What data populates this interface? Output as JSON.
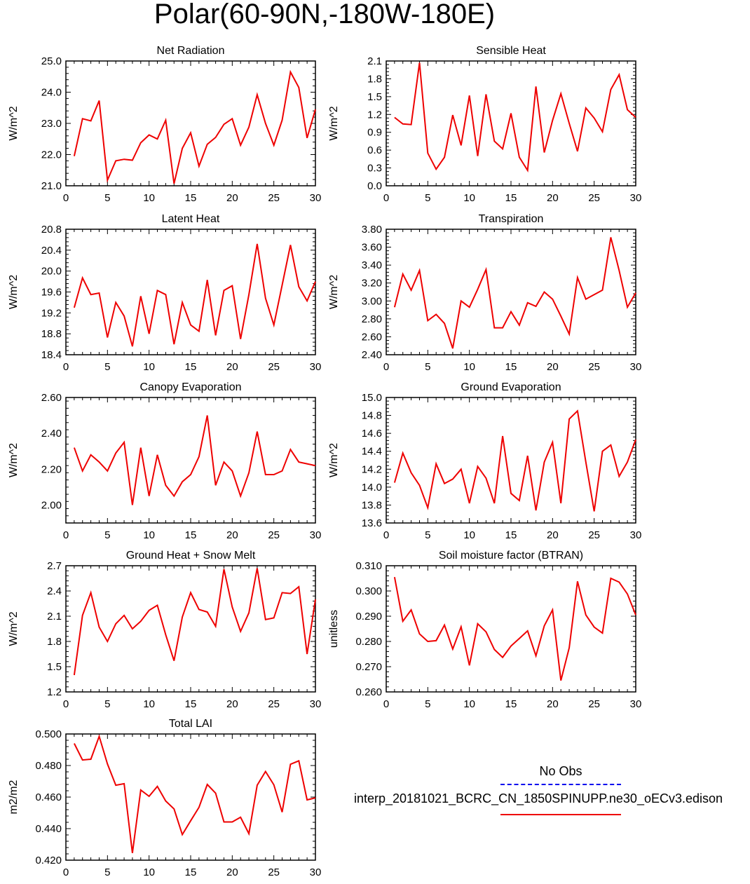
{
  "figure_title": "Polar(60-90N,-180W-180E)",
  "colors": {
    "model": "#ee0000",
    "obs": "#0000ee",
    "axis": "#000000"
  },
  "legend": {
    "obs_label": "No Obs",
    "case_label": "interp_20181021_BCRC_CN_1850SPINUPP.ne30_oECv3.edison"
  },
  "chart_data": [
    {
      "type": "line",
      "title": "Net Radiation",
      "ylabel": "W/m^2",
      "x": [
        1,
        2,
        3,
        4,
        5,
        6,
        7,
        8,
        9,
        10,
        11,
        12,
        13,
        14,
        15,
        16,
        17,
        18,
        19,
        20,
        21,
        22,
        23,
        24,
        25,
        26,
        27,
        28,
        29,
        30
      ],
      "xlim": [
        0,
        30
      ],
      "xticks": [
        0,
        5,
        10,
        15,
        20,
        25,
        30
      ],
      "ylim": [
        21.0,
        25.0
      ],
      "yticks": [
        "21.0",
        "22.0",
        "23.0",
        "24.0",
        "25.0"
      ],
      "series": [
        {
          "name": "model",
          "values": [
            21.95,
            23.15,
            23.08,
            23.73,
            21.18,
            21.8,
            21.85,
            21.82,
            22.38,
            22.63,
            22.5,
            23.1,
            21.07,
            22.2,
            22.7,
            21.63,
            22.33,
            22.55,
            22.97,
            23.15,
            22.3,
            22.88,
            23.92,
            23.0,
            22.3,
            23.1,
            24.65,
            24.15,
            22.53,
            23.45
          ]
        }
      ]
    },
    {
      "type": "line",
      "title": "Sensible Heat",
      "ylabel": "W/m^2",
      "x": [
        1,
        2,
        3,
        4,
        5,
        6,
        7,
        8,
        9,
        10,
        11,
        12,
        13,
        14,
        15,
        16,
        17,
        18,
        19,
        20,
        21,
        22,
        23,
        24,
        25,
        26,
        27,
        28,
        29,
        30
      ],
      "xlim": [
        0,
        30
      ],
      "xticks": [
        0,
        5,
        10,
        15,
        20,
        25,
        30
      ],
      "ylim": [
        0.0,
        2.1
      ],
      "yticks": [
        "0.0",
        "0.3",
        "0.6",
        "0.9",
        "1.2",
        "1.5",
        "1.8",
        "2.1"
      ],
      "series": [
        {
          "name": "model",
          "values": [
            1.15,
            1.04,
            1.03,
            2.07,
            0.55,
            0.28,
            0.48,
            1.19,
            0.68,
            1.52,
            0.5,
            1.54,
            0.75,
            0.62,
            1.22,
            0.48,
            0.26,
            1.67,
            0.56,
            1.1,
            1.55,
            1.05,
            0.58,
            1.31,
            1.14,
            0.91,
            1.62,
            1.87,
            1.28,
            1.15
          ]
        }
      ]
    },
    {
      "type": "line",
      "title": "Latent Heat",
      "ylabel": "W/m^2",
      "x": [
        1,
        2,
        3,
        4,
        5,
        6,
        7,
        8,
        9,
        10,
        11,
        12,
        13,
        14,
        15,
        16,
        17,
        18,
        19,
        20,
        21,
        22,
        23,
        24,
        25,
        26,
        27,
        28,
        29,
        30
      ],
      "xlim": [
        0,
        30
      ],
      "xticks": [
        0,
        5,
        10,
        15,
        20,
        25,
        30
      ],
      "ylim": [
        18.4,
        20.8
      ],
      "yticks": [
        "18.4",
        "18.8",
        "19.2",
        "19.6",
        "20.0",
        "20.4",
        "20.8"
      ],
      "series": [
        {
          "name": "model",
          "values": [
            19.3,
            19.87,
            19.55,
            19.58,
            18.73,
            19.4,
            19.14,
            18.56,
            19.52,
            18.8,
            19.63,
            19.55,
            18.6,
            19.4,
            18.97,
            18.85,
            19.83,
            18.77,
            19.63,
            19.72,
            18.7,
            19.55,
            20.52,
            19.48,
            18.97,
            19.73,
            20.5,
            19.7,
            19.43,
            19.8
          ]
        }
      ]
    },
    {
      "type": "line",
      "title": "Transpiration",
      "ylabel": "W/m^2",
      "x": [
        1,
        2,
        3,
        4,
        5,
        6,
        7,
        8,
        9,
        10,
        11,
        12,
        13,
        14,
        15,
        16,
        17,
        18,
        19,
        20,
        21,
        22,
        23,
        24,
        25,
        26,
        27,
        28,
        29,
        30
      ],
      "xlim": [
        0,
        30
      ],
      "xticks": [
        0,
        5,
        10,
        15,
        20,
        25,
        30
      ],
      "ylim": [
        2.4,
        3.8
      ],
      "yticks": [
        "2.40",
        "2.60",
        "2.80",
        "3.00",
        "3.20",
        "3.40",
        "3.60",
        "3.80"
      ],
      "series": [
        {
          "name": "model",
          "values": [
            2.93,
            3.3,
            3.12,
            3.34,
            2.78,
            2.85,
            2.75,
            2.47,
            3.0,
            2.93,
            3.13,
            3.35,
            2.7,
            2.7,
            2.88,
            2.73,
            2.98,
            2.94,
            3.1,
            3.02,
            2.83,
            2.63,
            3.26,
            3.02,
            3.07,
            3.12,
            3.71,
            3.34,
            2.93,
            3.09
          ]
        }
      ]
    },
    {
      "type": "line",
      "title": "Canopy Evaporation",
      "ylabel": "W/m^2",
      "x": [
        1,
        2,
        3,
        4,
        5,
        6,
        7,
        8,
        9,
        10,
        11,
        12,
        13,
        14,
        15,
        16,
        17,
        18,
        19,
        20,
        21,
        22,
        23,
        24,
        25,
        26,
        27,
        28,
        29,
        30
      ],
      "xlim": [
        0,
        30
      ],
      "xticks": [
        0,
        5,
        10,
        15,
        20,
        25,
        30
      ],
      "ylim": [
        1.9,
        2.6
      ],
      "yticks": [
        "2.00",
        "2.20",
        "2.40",
        "2.60"
      ],
      "series": [
        {
          "name": "model",
          "values": [
            2.32,
            2.19,
            2.28,
            2.24,
            2.19,
            2.29,
            2.35,
            2.0,
            2.32,
            2.05,
            2.28,
            2.11,
            2.05,
            2.13,
            2.17,
            2.27,
            2.5,
            2.11,
            2.24,
            2.19,
            2.05,
            2.18,
            2.41,
            2.17,
            2.17,
            2.19,
            2.31,
            2.24,
            2.23,
            2.22
          ]
        }
      ]
    },
    {
      "type": "line",
      "title": "Ground Evaporation",
      "ylabel": "W/m^2",
      "x": [
        1,
        2,
        3,
        4,
        5,
        6,
        7,
        8,
        9,
        10,
        11,
        12,
        13,
        14,
        15,
        16,
        17,
        18,
        19,
        20,
        21,
        22,
        23,
        24,
        25,
        26,
        27,
        28,
        29,
        30
      ],
      "xlim": [
        0,
        30
      ],
      "xticks": [
        0,
        5,
        10,
        15,
        20,
        25,
        30
      ],
      "ylim": [
        13.6,
        15.0
      ],
      "yticks": [
        "13.6",
        "13.8",
        "14.0",
        "14.2",
        "14.4",
        "14.6",
        "14.8",
        "15.0"
      ],
      "series": [
        {
          "name": "model",
          "values": [
            14.05,
            14.38,
            14.16,
            14.02,
            13.77,
            14.26,
            14.04,
            14.09,
            14.2,
            13.82,
            14.23,
            14.1,
            13.82,
            14.57,
            13.93,
            13.85,
            14.35,
            13.74,
            14.28,
            14.5,
            13.82,
            14.76,
            14.85,
            14.28,
            13.73,
            14.4,
            14.47,
            14.12,
            14.28,
            14.53
          ]
        }
      ]
    },
    {
      "type": "line",
      "title": "Ground Heat + Snow Melt",
      "ylabel": "W/m^2",
      "x": [
        1,
        2,
        3,
        4,
        5,
        6,
        7,
        8,
        9,
        10,
        11,
        12,
        13,
        14,
        15,
        16,
        17,
        18,
        19,
        20,
        21,
        22,
        23,
        24,
        25,
        26,
        27,
        28,
        29,
        30
      ],
      "xlim": [
        0,
        30
      ],
      "xticks": [
        0,
        5,
        10,
        15,
        20,
        25,
        30
      ],
      "ylim": [
        1.2,
        2.7
      ],
      "yticks": [
        "1.2",
        "1.5",
        "1.8",
        "2.1",
        "2.4",
        "2.7"
      ],
      "series": [
        {
          "name": "model",
          "values": [
            1.4,
            2.11,
            2.38,
            1.97,
            1.8,
            2.01,
            2.11,
            1.95,
            2.04,
            2.17,
            2.23,
            1.88,
            1.57,
            2.09,
            2.38,
            2.18,
            2.15,
            1.98,
            2.66,
            2.21,
            1.92,
            2.14,
            2.67,
            2.06,
            2.08,
            2.38,
            2.37,
            2.45,
            1.65,
            2.3
          ]
        }
      ]
    },
    {
      "type": "line",
      "title": "Soil moisture factor (BTRAN)",
      "ylabel": "unitless",
      "x": [
        1,
        2,
        3,
        4,
        5,
        6,
        7,
        8,
        9,
        10,
        11,
        12,
        13,
        14,
        15,
        16,
        17,
        18,
        19,
        20,
        21,
        22,
        23,
        24,
        25,
        26,
        27,
        28,
        29,
        30
      ],
      "xlim": [
        0,
        30
      ],
      "xticks": [
        0,
        5,
        10,
        15,
        20,
        25,
        30
      ],
      "ylim": [
        0.26,
        0.31
      ],
      "yticks": [
        "0.260",
        "0.270",
        "0.280",
        "0.290",
        "0.300",
        "0.310"
      ],
      "series": [
        {
          "name": "model",
          "values": [
            0.3055,
            0.288,
            0.2925,
            0.283,
            0.28,
            0.2803,
            0.2865,
            0.277,
            0.2858,
            0.2705,
            0.287,
            0.2838,
            0.2768,
            0.2737,
            0.2782,
            0.2812,
            0.2842,
            0.2743,
            0.2862,
            0.2925,
            0.2645,
            0.2775,
            0.3038,
            0.2905,
            0.2857,
            0.2833,
            0.305,
            0.3035,
            0.2988,
            0.2905
          ]
        }
      ]
    },
    {
      "type": "line",
      "title": "Total LAI",
      "ylabel": "m2/m2",
      "x": [
        1,
        2,
        3,
        4,
        5,
        6,
        7,
        8,
        9,
        10,
        11,
        12,
        13,
        14,
        15,
        16,
        17,
        18,
        19,
        20,
        21,
        22,
        23,
        24,
        25,
        26,
        27,
        28,
        29,
        30
      ],
      "xlim": [
        0,
        30
      ],
      "xticks": [
        0,
        5,
        10,
        15,
        20,
        25,
        30
      ],
      "ylim": [
        0.42,
        0.5
      ],
      "yticks": [
        "0.420",
        "0.440",
        "0.460",
        "0.480",
        "0.500"
      ],
      "series": [
        {
          "name": "model",
          "values": [
            0.494,
            0.4835,
            0.484,
            0.4985,
            0.481,
            0.4675,
            0.4685,
            0.4245,
            0.4645,
            0.4605,
            0.4668,
            0.4575,
            0.4525,
            0.4362,
            0.445,
            0.4535,
            0.468,
            0.4625,
            0.4442,
            0.4442,
            0.4472,
            0.4368,
            0.4675,
            0.4762,
            0.4678,
            0.4505,
            0.4808,
            0.483,
            0.4582,
            0.4595
          ]
        }
      ]
    }
  ]
}
